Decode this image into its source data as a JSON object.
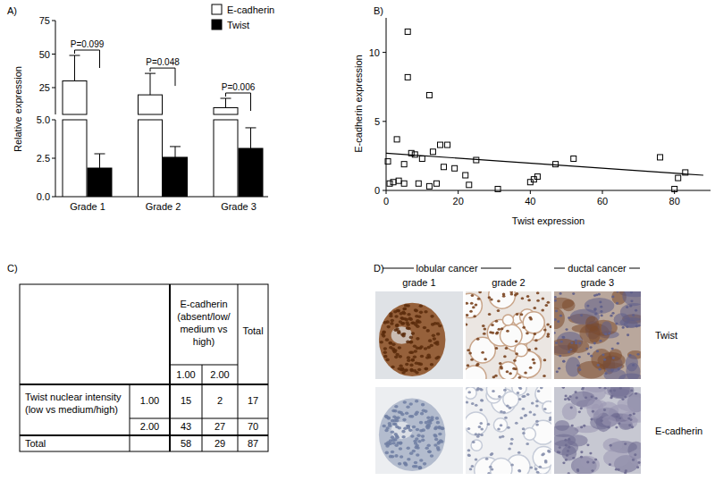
{
  "panel_labels": [
    "A)",
    "B)",
    "C)",
    "D)"
  ],
  "chart_data": [
    {
      "type": "bar",
      "categories": [
        "Grade 1",
        "Grade 2",
        "Grade 3"
      ],
      "ylabel": "Relative expression",
      "ylim": [
        0,
        75
      ],
      "ybreak": 5,
      "yticks": [
        {
          "value": 0,
          "label": "0.0"
        },
        {
          "value": 2.5,
          "label": "2.5"
        },
        {
          "value": 5,
          "label": "5.0"
        },
        25,
        50,
        75
      ],
      "legend": "top right",
      "series": [
        {
          "name": "E-cadherin",
          "color": "#ffffff",
          "values": [
            30,
            19.6,
            10
          ],
          "errors": [
            19,
            16,
            7
          ]
        },
        {
          "name": "Twist",
          "color": "#000000",
          "values": [
            1.86,
            2.56,
            3.14
          ],
          "errors": [
            0.93,
            0.7,
            1.34
          ]
        }
      ],
      "annotations": [
        "P=0.099",
        "P=0.048",
        "P=0.006"
      ]
    },
    {
      "type": "scatter",
      "xlabel": "Twist expression",
      "ylabel": "E-cadherin expression",
      "xlim": [
        0,
        90
      ],
      "ylim": [
        0,
        12.5
      ],
      "xticks": [
        0,
        20,
        40,
        60,
        80
      ],
      "yticks": [
        0,
        5,
        10
      ],
      "series": [
        {
          "type": "scatter",
          "marker": "square",
          "color": "#000000",
          "x": [
            0.5,
            1,
            2,
            3,
            3.5,
            5,
            5,
            6,
            6,
            7,
            8,
            9,
            10,
            12,
            12,
            13,
            14,
            15,
            16,
            17,
            19,
            22,
            23,
            25,
            31,
            40,
            41,
            42,
            47,
            52,
            76,
            80,
            81,
            83
          ],
          "values": [
            2.1,
            0.5,
            0.6,
            3.7,
            0.7,
            0.5,
            1.9,
            11.5,
            8.2,
            2.7,
            2.6,
            0.5,
            2.3,
            6.9,
            0.3,
            2.8,
            0.5,
            3.3,
            1.7,
            3.3,
            1.6,
            1.1,
            0.4,
            2.2,
            0.1,
            0.6,
            0.8,
            1.0,
            1.9,
            2.3,
            2.4,
            0.1,
            0.9,
            1.3
          ]
        },
        {
          "type": "line",
          "line_style": "solid",
          "color": "#000000",
          "x": [
            0,
            88
          ],
          "values": [
            2.7,
            1.1
          ]
        }
      ]
    }
  ],
  "table": {
    "col_group": "E-cadherin (absent/low/ medium vs high)",
    "sub_headers": [
      "1.00",
      "2.00"
    ],
    "total_header": "Total",
    "row_group": "Twist nuclear intensity (low vs medium/high)",
    "rows": [
      {
        "label": "1.00",
        "cells": [
          15,
          2,
          17
        ]
      },
      {
        "label": "2.00",
        "cells": [
          43,
          27,
          70
        ]
      }
    ],
    "total_row": {
      "label": "Total",
      "cells": [
        58,
        29,
        87
      ]
    }
  },
  "images": {
    "groups": [
      "lobular cancer",
      "ductal cancer"
    ],
    "columns": [
      "grade 1",
      "grade 2",
      "grade 3"
    ],
    "rows": [
      "Twist",
      "E-cadherin"
    ]
  }
}
